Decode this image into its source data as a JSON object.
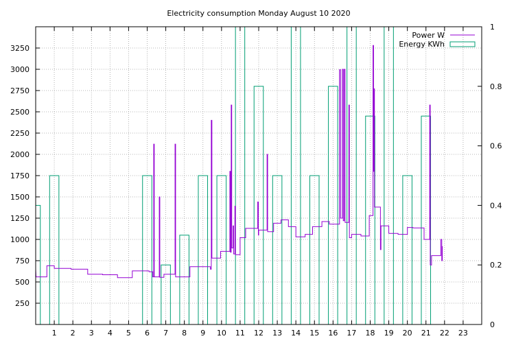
{
  "chart_data": {
    "type": "line",
    "title": "Electricity consumption Monday August 10 2020",
    "xlabel": "",
    "ylabel": "",
    "y2label": "",
    "grid": true,
    "legend_position": "top-right",
    "xlim": [
      0,
      24
    ],
    "ylim": [
      0,
      3500
    ],
    "y2lim": [
      0,
      1
    ],
    "x_ticks": [
      1,
      2,
      3,
      4,
      5,
      6,
      7,
      8,
      9,
      10,
      11,
      12,
      13,
      14,
      15,
      16,
      17,
      18,
      19,
      20,
      21,
      22,
      23
    ],
    "y_ticks": [
      250,
      500,
      750,
      1000,
      1250,
      1500,
      1750,
      2000,
      2250,
      2500,
      2750,
      3000,
      3250
    ],
    "y2_ticks": [
      0,
      0.2,
      0.4,
      0.6,
      0.8,
      1
    ],
    "y2_tick_labels": [
      "0",
      "0.2",
      "0.4",
      "0.6",
      "0.8",
      "1"
    ],
    "colors": {
      "power": "#9400d3",
      "energy": "#009e73",
      "grid": "#a0a0a0"
    },
    "series": [
      {
        "name": "Power W",
        "axis": "y",
        "style": "line",
        "points": [
          [
            0.0,
            650
          ],
          [
            0.02,
            560
          ],
          [
            0.6,
            560
          ],
          [
            0.6,
            690
          ],
          [
            1.0,
            690
          ],
          [
            1.0,
            660
          ],
          [
            1.9,
            660
          ],
          [
            1.9,
            650
          ],
          [
            2.8,
            650
          ],
          [
            2.8,
            590
          ],
          [
            3.6,
            590
          ],
          [
            3.6,
            585
          ],
          [
            4.4,
            585
          ],
          [
            4.4,
            550
          ],
          [
            5.2,
            550
          ],
          [
            5.2,
            630
          ],
          [
            6.1,
            630
          ],
          [
            6.1,
            620
          ],
          [
            6.3,
            620
          ],
          [
            6.3,
            560
          ],
          [
            6.35,
            560
          ],
          [
            6.35,
            2120
          ],
          [
            6.38,
            2120
          ],
          [
            6.38,
            560
          ],
          [
            6.65,
            560
          ],
          [
            6.65,
            1500
          ],
          [
            6.68,
            1500
          ],
          [
            6.68,
            555
          ],
          [
            6.9,
            555
          ],
          [
            6.9,
            590
          ],
          [
            7.5,
            590
          ],
          [
            7.5,
            2120
          ],
          [
            7.53,
            2120
          ],
          [
            7.53,
            560
          ],
          [
            8.3,
            560
          ],
          [
            8.3,
            680
          ],
          [
            9.4,
            680
          ],
          [
            9.4,
            650
          ],
          [
            9.45,
            650
          ],
          [
            9.45,
            2400
          ],
          [
            9.48,
            2400
          ],
          [
            9.48,
            780
          ],
          [
            9.95,
            780
          ],
          [
            9.95,
            860
          ],
          [
            10.45,
            860
          ],
          [
            10.45,
            1800
          ],
          [
            10.48,
            1800
          ],
          [
            10.48,
            850
          ],
          [
            10.52,
            850
          ],
          [
            10.52,
            2580
          ],
          [
            10.55,
            2580
          ],
          [
            10.55,
            900
          ],
          [
            10.62,
            900
          ],
          [
            10.62,
            1160
          ],
          [
            10.65,
            1160
          ],
          [
            10.65,
            830
          ],
          [
            10.72,
            830
          ],
          [
            10.72,
            1390
          ],
          [
            10.75,
            1390
          ],
          [
            10.75,
            820
          ],
          [
            11.0,
            820
          ],
          [
            11.0,
            1020
          ],
          [
            11.3,
            1020
          ],
          [
            11.3,
            1130
          ],
          [
            11.95,
            1130
          ],
          [
            11.95,
            1440
          ],
          [
            11.98,
            1440
          ],
          [
            11.98,
            1050
          ],
          [
            12.0,
            1050
          ],
          [
            12.0,
            1110
          ],
          [
            12.45,
            1110
          ],
          [
            12.45,
            2000
          ],
          [
            12.48,
            2000
          ],
          [
            12.48,
            1090
          ],
          [
            12.8,
            1090
          ],
          [
            12.8,
            1190
          ],
          [
            13.2,
            1190
          ],
          [
            13.2,
            1230
          ],
          [
            13.6,
            1230
          ],
          [
            13.6,
            1150
          ],
          [
            14.0,
            1150
          ],
          [
            14.0,
            1030
          ],
          [
            14.5,
            1030
          ],
          [
            14.5,
            1060
          ],
          [
            14.9,
            1060
          ],
          [
            14.9,
            1150
          ],
          [
            15.4,
            1150
          ],
          [
            15.4,
            1210
          ],
          [
            15.8,
            1210
          ],
          [
            15.8,
            1180
          ],
          [
            16.35,
            1180
          ],
          [
            16.35,
            2995
          ],
          [
            16.4,
            2995
          ],
          [
            16.4,
            1250
          ],
          [
            16.5,
            1250
          ],
          [
            16.5,
            3000
          ],
          [
            16.55,
            3000
          ],
          [
            16.55,
            1220
          ],
          [
            16.6,
            1220
          ],
          [
            16.6,
            3000
          ],
          [
            16.65,
            3000
          ],
          [
            16.65,
            1200
          ],
          [
            16.85,
            1200
          ],
          [
            16.85,
            2580
          ],
          [
            16.88,
            2580
          ],
          [
            16.88,
            1020
          ],
          [
            17.0,
            1020
          ],
          [
            17.0,
            1060
          ],
          [
            17.5,
            1060
          ],
          [
            17.5,
            1040
          ],
          [
            17.95,
            1040
          ],
          [
            17.95,
            1280
          ],
          [
            18.15,
            1280
          ],
          [
            18.15,
            3280
          ],
          [
            18.18,
            3280
          ],
          [
            18.18,
            1800
          ],
          [
            18.2,
            1800
          ],
          [
            18.2,
            2770
          ],
          [
            18.23,
            2770
          ],
          [
            18.23,
            1380
          ],
          [
            18.55,
            1380
          ],
          [
            18.55,
            880
          ],
          [
            18.58,
            880
          ],
          [
            18.58,
            1160
          ],
          [
            19.0,
            1160
          ],
          [
            19.0,
            1070
          ],
          [
            19.5,
            1070
          ],
          [
            19.5,
            1060
          ],
          [
            20.0,
            1060
          ],
          [
            20.0,
            1140
          ],
          [
            20.3,
            1140
          ],
          [
            20.3,
            1135
          ],
          [
            20.9,
            1135
          ],
          [
            20.9,
            1000
          ],
          [
            21.2,
            1000
          ],
          [
            21.2,
            2580
          ],
          [
            21.23,
            2580
          ],
          [
            21.23,
            700
          ],
          [
            21.3,
            700
          ],
          [
            21.3,
            810
          ],
          [
            21.8,
            810
          ],
          [
            21.8,
            1000
          ],
          [
            21.85,
            1000
          ],
          [
            21.85,
            750
          ],
          [
            21.88,
            750
          ],
          [
            21.88,
            920
          ]
        ]
      },
      {
        "name": "Energy KWh",
        "axis": "y2",
        "style": "boxes",
        "points": [
          [
            0,
            0.4
          ],
          [
            1,
            0.5
          ],
          [
            6,
            0.5
          ],
          [
            7,
            0.2
          ],
          [
            8,
            0.3
          ],
          [
            9,
            0.5
          ],
          [
            10,
            0.5
          ],
          [
            11,
            1.0
          ],
          [
            12,
            0.8
          ],
          [
            13,
            0.5
          ],
          [
            14,
            1.0
          ],
          [
            15,
            0.5
          ],
          [
            16,
            0.8
          ],
          [
            17,
            1.0
          ],
          [
            18,
            0.7
          ],
          [
            19,
            1.0
          ],
          [
            20,
            0.5
          ],
          [
            21,
            0.7
          ]
        ]
      }
    ]
  }
}
